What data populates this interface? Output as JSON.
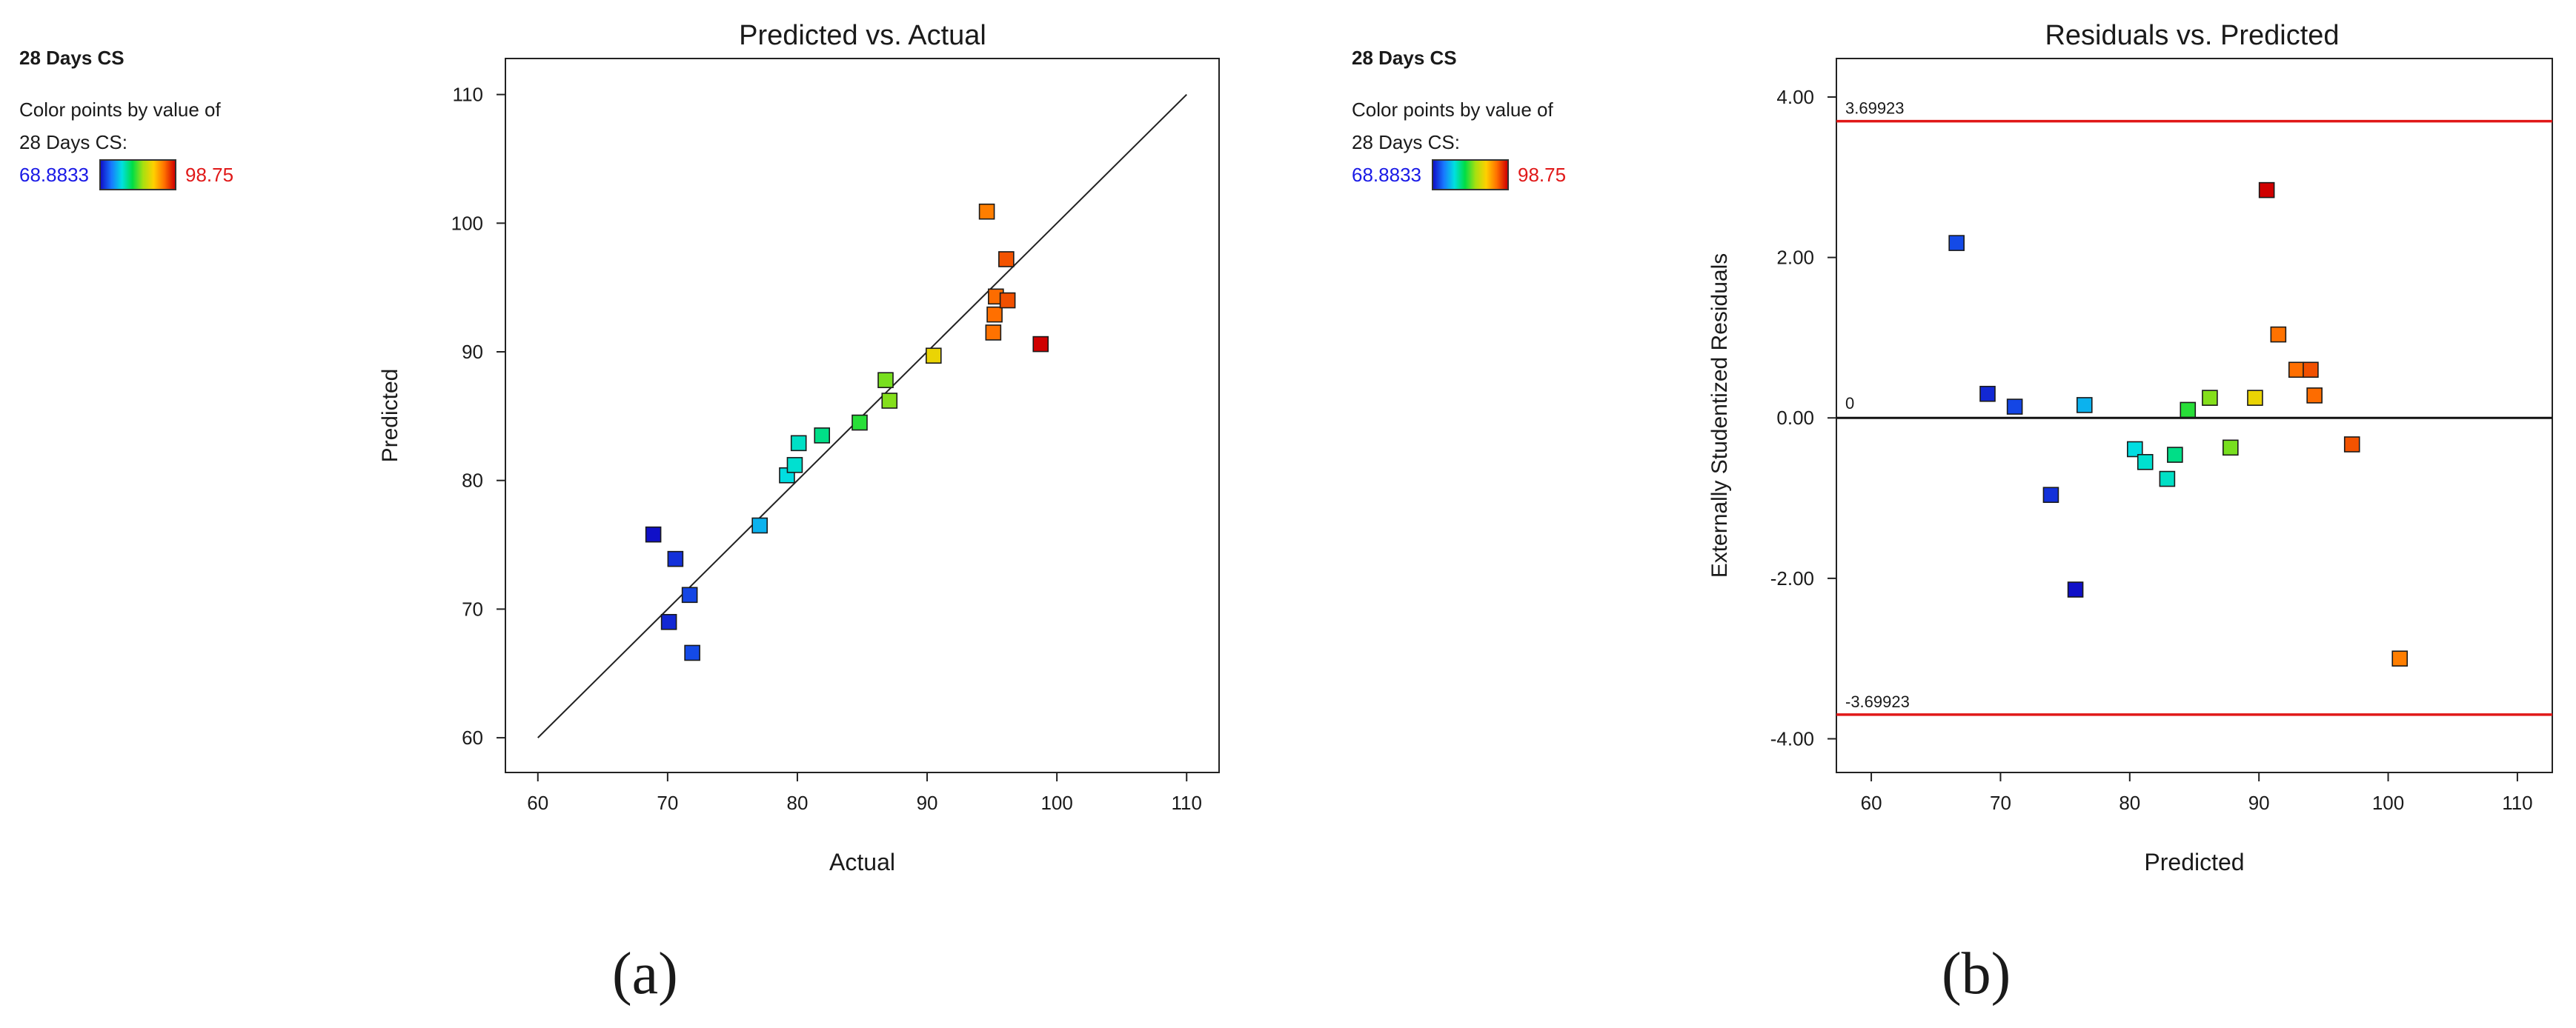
{
  "legend_a": {
    "title": "28 Days CS",
    "caption_line1": "Color points by value of",
    "caption_line2": "28 Days CS:",
    "min_label": "68.8833",
    "max_label": "98.75"
  },
  "legend_b": {
    "title": "28 Days CS",
    "caption_line1": "Color points by value of",
    "caption_line2": "28 Days CS:",
    "min_label": "68.8833",
    "max_label": "98.75"
  },
  "color_scale": {
    "min": 68.8833,
    "max": 98.75
  },
  "subcaptions": {
    "a": "(a)",
    "b": "(b)"
  },
  "chart_data": [
    {
      "type": "scatter",
      "title": "Predicted vs. Actual",
      "xlabel": "Actual",
      "ylabel": "Predicted",
      "xlim": [
        57.5,
        112.5
      ],
      "ylim": [
        57.3,
        112.8
      ],
      "xticks": [
        60,
        70,
        80,
        90,
        100,
        110
      ],
      "xtick_labels": [
        "60",
        "70",
        "80",
        "90",
        "100",
        "110"
      ],
      "yticks": [
        60,
        70,
        80,
        90,
        100,
        110
      ],
      "ytick_labels": [
        "60",
        "70",
        "80",
        "90",
        "100",
        "110"
      ],
      "reference_line": {
        "from": [
          60,
          60
        ],
        "to": [
          110,
          110
        ]
      },
      "points": [
        {
          "x": 68.9,
          "y": 75.8
        },
        {
          "x": 70.1,
          "y": 69.0
        },
        {
          "x": 70.6,
          "y": 73.9
        },
        {
          "x": 71.7,
          "y": 71.1
        },
        {
          "x": 71.9,
          "y": 66.6
        },
        {
          "x": 77.1,
          "y": 76.5
        },
        {
          "x": 79.2,
          "y": 80.4
        },
        {
          "x": 79.8,
          "y": 81.2
        },
        {
          "x": 80.1,
          "y": 82.9
        },
        {
          "x": 81.9,
          "y": 83.5
        },
        {
          "x": 84.8,
          "y": 84.5
        },
        {
          "x": 86.8,
          "y": 87.8
        },
        {
          "x": 87.1,
          "y": 86.2
        },
        {
          "x": 90.5,
          "y": 89.7
        },
        {
          "x": 94.6,
          "y": 100.9
        },
        {
          "x": 95.1,
          "y": 91.5
        },
        {
          "x": 95.2,
          "y": 92.9
        },
        {
          "x": 95.3,
          "y": 94.3
        },
        {
          "x": 96.1,
          "y": 97.2
        },
        {
          "x": 96.2,
          "y": 94.0
        },
        {
          "x": 98.75,
          "y": 90.6
        }
      ]
    },
    {
      "type": "scatter",
      "title": "Residuals vs. Predicted",
      "xlabel": "Predicted",
      "ylabel": "Externally Studentized Residuals",
      "xlim": [
        57.3,
        112.7
      ],
      "ylim": [
        -4.42,
        4.48
      ],
      "xticks": [
        60,
        70,
        80,
        90,
        100,
        110
      ],
      "xtick_labels": [
        "60",
        "70",
        "80",
        "90",
        "100",
        "110"
      ],
      "yticks": [
        4,
        2,
        0,
        -2,
        -4
      ],
      "ytick_labels": [
        "4.00",
        "2.00",
        "0.00",
        "-2.00",
        "-4.00"
      ],
      "limit_lines": [
        {
          "value": 3.69923,
          "label": "3.69923",
          "color": "#e01818"
        },
        {
          "value": -3.69923,
          "label": "-3.69923",
          "color": "#e01818"
        }
      ],
      "zero_line": {
        "value": 0,
        "label": "0"
      },
      "points": [
        {
          "x": 66.6,
          "y": 2.18,
          "c": 71.9
        },
        {
          "x": 69.0,
          "y": 0.3,
          "c": 70.1
        },
        {
          "x": 71.1,
          "y": 0.14,
          "c": 71.7
        },
        {
          "x": 73.9,
          "y": -0.96,
          "c": 70.6
        },
        {
          "x": 75.8,
          "y": -2.14,
          "c": 68.9
        },
        {
          "x": 76.5,
          "y": 0.16,
          "c": 77.1
        },
        {
          "x": 80.4,
          "y": -0.39,
          "c": 79.2
        },
        {
          "x": 81.2,
          "y": -0.55,
          "c": 79.8
        },
        {
          "x": 82.9,
          "y": -0.76,
          "c": 80.1
        },
        {
          "x": 83.5,
          "y": -0.46,
          "c": 81.9
        },
        {
          "x": 84.5,
          "y": 0.1,
          "c": 84.8
        },
        {
          "x": 86.2,
          "y": 0.25,
          "c": 87.1
        },
        {
          "x": 87.8,
          "y": -0.37,
          "c": 86.8
        },
        {
          "x": 89.7,
          "y": 0.25,
          "c": 90.5
        },
        {
          "x": 90.6,
          "y": 2.84,
          "c": 98.75
        },
        {
          "x": 91.5,
          "y": 1.04,
          "c": 95.1
        },
        {
          "x": 92.9,
          "y": 0.6,
          "c": 95.2
        },
        {
          "x": 94.0,
          "y": 0.6,
          "c": 96.2
        },
        {
          "x": 94.3,
          "y": 0.28,
          "c": 95.3
        },
        {
          "x": 97.2,
          "y": -0.33,
          "c": 96.1
        },
        {
          "x": 100.9,
          "y": -3.0,
          "c": 94.6
        }
      ]
    }
  ]
}
